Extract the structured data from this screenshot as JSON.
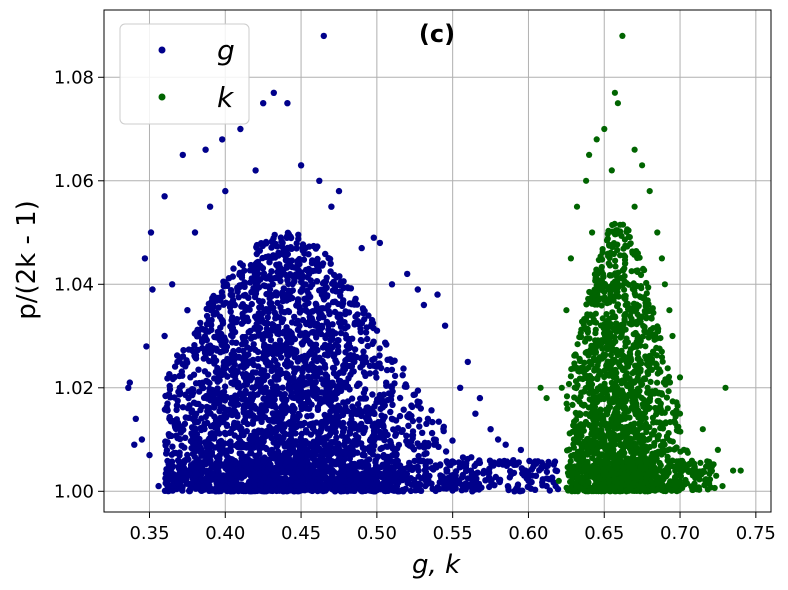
{
  "chart_data": {
    "type": "scatter",
    "title": "(c)",
    "xlabel": "g, k",
    "ylabel": "p/(2k - 1)",
    "xlim": [
      0.32,
      0.76
    ],
    "ylim": [
      0.996,
      1.093
    ],
    "x_ticks": [
      0.35,
      0.4,
      0.45,
      0.5,
      0.55,
      0.6,
      0.65,
      0.7,
      0.75
    ],
    "x_tick_labels": [
      "0.35",
      "0.40",
      "0.45",
      "0.50",
      "0.55",
      "0.60",
      "0.65",
      "0.70",
      "0.75"
    ],
    "y_ticks": [
      1.0,
      1.02,
      1.04,
      1.06,
      1.08
    ],
    "y_tick_labels": [
      "1.00",
      "1.02",
      "1.04",
      "1.06",
      "1.08"
    ],
    "grid": true,
    "legend_position": "top-left",
    "series": [
      {
        "name": "g",
        "color": "#00008b",
        "marker": "circle",
        "points": [
          [
            0.465,
            1.088
          ],
          [
            0.432,
            1.077
          ],
          [
            0.441,
            1.075
          ],
          [
            0.425,
            1.075
          ],
          [
            0.41,
            1.07
          ],
          [
            0.398,
            1.068
          ],
          [
            0.387,
            1.066
          ],
          [
            0.372,
            1.065
          ],
          [
            0.36,
            1.057
          ],
          [
            0.351,
            1.05
          ],
          [
            0.347,
            1.045
          ],
          [
            0.352,
            1.039
          ],
          [
            0.348,
            1.028
          ],
          [
            0.337,
            1.021
          ],
          [
            0.336,
            1.02
          ],
          [
            0.341,
            1.014
          ],
          [
            0.345,
            1.01
          ],
          [
            0.34,
            1.009
          ],
          [
            0.35,
            1.007
          ],
          [
            0.356,
            1.001
          ],
          [
            0.462,
            1.06
          ],
          [
            0.475,
            1.058
          ],
          [
            0.498,
            1.049
          ],
          [
            0.502,
            1.048
          ],
          [
            0.52,
            1.042
          ],
          [
            0.527,
            1.039
          ],
          [
            0.54,
            1.038
          ],
          [
            0.545,
            1.032
          ],
          [
            0.531,
            1.036
          ],
          [
            0.56,
            1.025
          ],
          [
            0.568,
            1.018
          ],
          [
            0.575,
            1.012
          ],
          [
            0.585,
            1.009
          ],
          [
            0.59,
            1.006
          ],
          [
            0.598,
            1.004
          ],
          [
            0.605,
            1.003
          ],
          [
            0.612,
            1.001
          ],
          [
            0.618,
            1.001
          ],
          [
            0.38,
            1.05
          ],
          [
            0.39,
            1.055
          ],
          [
            0.4,
            1.058
          ],
          [
            0.42,
            1.062
          ],
          [
            0.45,
            1.063
          ],
          [
            0.47,
            1.055
          ],
          [
            0.49,
            1.047
          ],
          [
            0.51,
            1.04
          ],
          [
            0.36,
            1.03
          ],
          [
            0.365,
            1.04
          ],
          [
            0.37,
            1.02
          ],
          [
            0.375,
            1.035
          ],
          [
            0.555,
            1.02
          ],
          [
            0.565,
            1.015
          ],
          [
            0.58,
            1.01
          ],
          [
            0.595,
            1.008
          ],
          [
            0.6,
            1.002
          ]
        ],
        "density_core": {
          "x_center": 0.44,
          "x_spread": 0.045,
          "y_min": 1.0,
          "y_peak": 1.04,
          "x_min": 0.36,
          "x_max": 0.62
        }
      },
      {
        "name": "k",
        "color": "#006400",
        "marker": "hexagon",
        "points": [
          [
            0.662,
            1.088
          ],
          [
            0.657,
            1.077
          ],
          [
            0.659,
            1.075
          ],
          [
            0.65,
            1.07
          ],
          [
            0.645,
            1.068
          ],
          [
            0.67,
            1.066
          ],
          [
            0.64,
            1.065
          ],
          [
            0.675,
            1.063
          ],
          [
            0.638,
            1.06
          ],
          [
            0.68,
            1.058
          ],
          [
            0.632,
            1.055
          ],
          [
            0.685,
            1.05
          ],
          [
            0.628,
            1.045
          ],
          [
            0.69,
            1.04
          ],
          [
            0.625,
            1.035
          ],
          [
            0.695,
            1.03
          ],
          [
            0.622,
            1.02
          ],
          [
            0.7,
            1.022
          ],
          [
            0.73,
            1.02
          ],
          [
            0.608,
            1.02
          ],
          [
            0.612,
            1.018
          ],
          [
            0.7,
            1.015
          ],
          [
            0.715,
            1.012
          ],
          [
            0.725,
            1.008
          ],
          [
            0.735,
            1.004
          ],
          [
            0.74,
            1.004
          ],
          [
            0.728,
            1.001
          ],
          [
            0.632,
            1.001
          ],
          [
            0.62,
            1.002
          ],
          [
            0.71,
            1.003
          ],
          [
            0.688,
            1.045
          ],
          [
            0.693,
            1.035
          ],
          [
            0.642,
            1.05
          ],
          [
            0.67,
            1.055
          ],
          [
            0.655,
            1.062
          ]
        ],
        "density_core": {
          "x_center": 0.66,
          "x_spread": 0.018,
          "y_min": 1.0,
          "y_peak": 1.035,
          "x_min": 0.625,
          "x_max": 0.725
        }
      }
    ]
  }
}
